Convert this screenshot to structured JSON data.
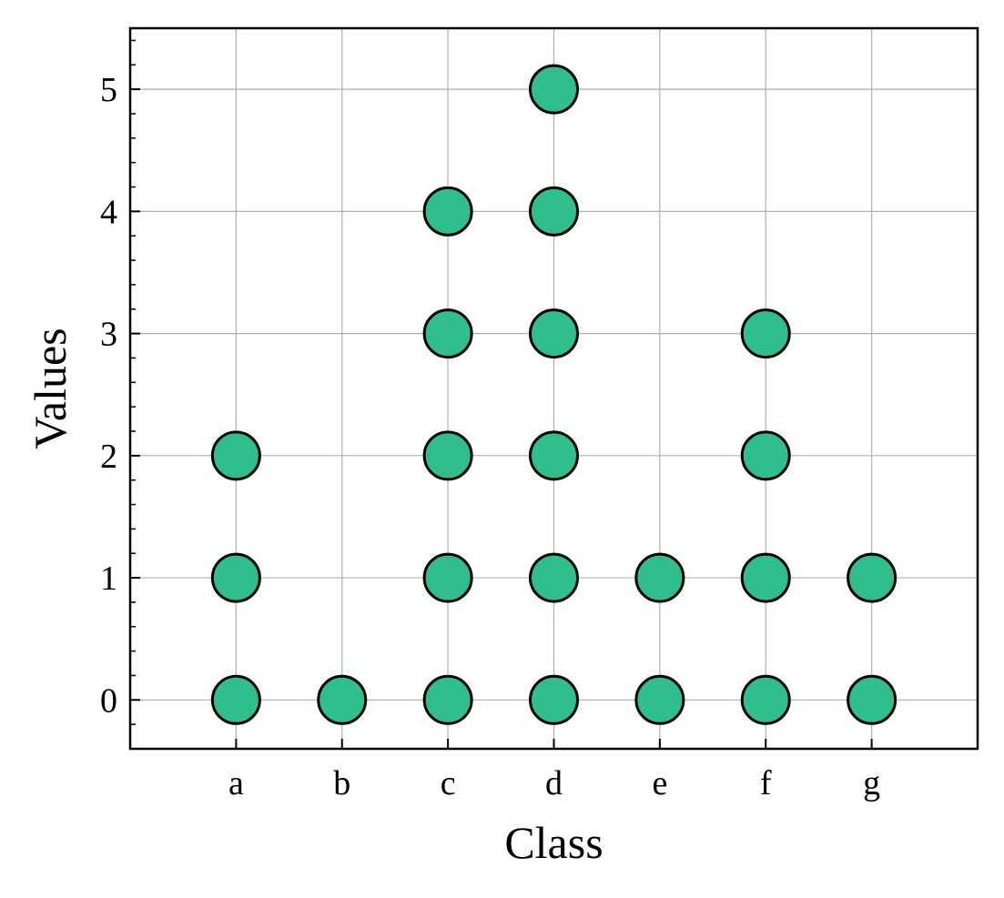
{
  "chart_data": {
    "type": "scatter",
    "title": "",
    "xlabel": "Class",
    "ylabel": "Values",
    "categories": [
      "a",
      "b",
      "c",
      "d",
      "e",
      "f",
      "g"
    ],
    "x_range": [
      -1,
      7
    ],
    "ylim": [
      -0.4,
      5.5
    ],
    "y_ticks": [
      0,
      1,
      2,
      3,
      4,
      5
    ],
    "y_minor_step": 0.2,
    "grid": true,
    "marker_color": "#2fbf8e",
    "marker_edge_color": "#000000",
    "points": [
      {
        "x": "a",
        "y": 0
      },
      {
        "x": "a",
        "y": 1
      },
      {
        "x": "a",
        "y": 2
      },
      {
        "x": "b",
        "y": 0
      },
      {
        "x": "c",
        "y": 0
      },
      {
        "x": "c",
        "y": 1
      },
      {
        "x": "c",
        "y": 2
      },
      {
        "x": "c",
        "y": 3
      },
      {
        "x": "c",
        "y": 4
      },
      {
        "x": "d",
        "y": 0
      },
      {
        "x": "d",
        "y": 1
      },
      {
        "x": "d",
        "y": 2
      },
      {
        "x": "d",
        "y": 3
      },
      {
        "x": "d",
        "y": 4
      },
      {
        "x": "d",
        "y": 5
      },
      {
        "x": "e",
        "y": 0
      },
      {
        "x": "e",
        "y": 1
      },
      {
        "x": "f",
        "y": 0
      },
      {
        "x": "f",
        "y": 1
      },
      {
        "x": "f",
        "y": 2
      },
      {
        "x": "f",
        "y": 3
      },
      {
        "x": "g",
        "y": 0
      },
      {
        "x": "g",
        "y": 1
      }
    ]
  }
}
